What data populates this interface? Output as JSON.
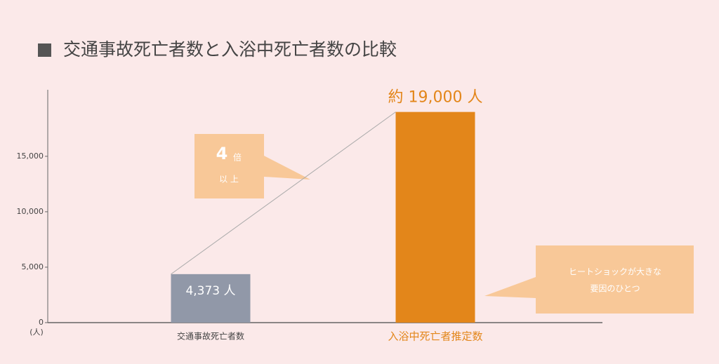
{
  "chart_data": {
    "type": "bar",
    "title": "交通事故死亡者数と入浴中死亡者数の比較",
    "y_unit_label": "(人)",
    "categories": [
      "交通事故死亡者数",
      "入浴中死亡者推定数"
    ],
    "values": [
      4373,
      19000
    ],
    "value_labels": [
      "4,373 人",
      "約 19,000 人"
    ],
    "colors": [
      "#9198a8",
      "#e3861a"
    ],
    "ylim": [
      0,
      21000
    ],
    "yticks": [
      0,
      {
        "value": 5000,
        "label": "5,000"
      },
      {
        "value": 10000,
        "label": "10,000"
      },
      {
        "value": 15000,
        "label": "15,000"
      }
    ],
    "annotations": [
      "4",
      "倍",
      "以 上",
      "ヒートショックが大きな",
      "要因のひとつ"
    ]
  }
}
